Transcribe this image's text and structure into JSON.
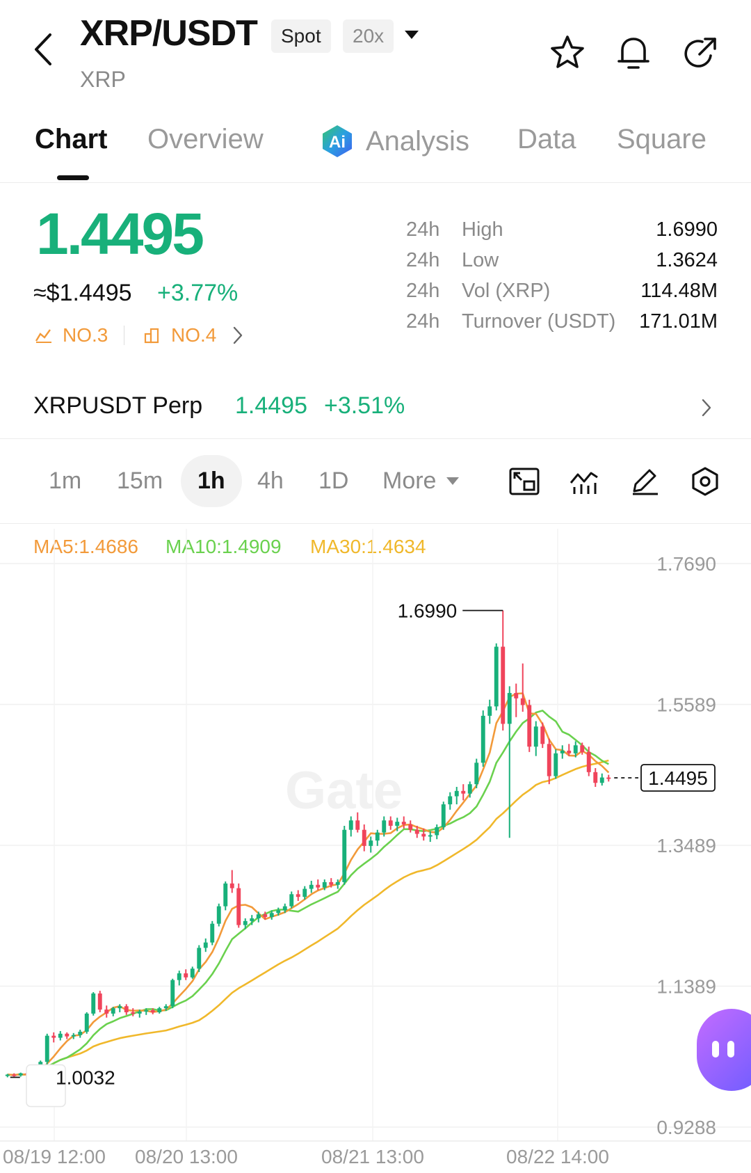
{
  "header": {
    "pair": "XRP/USDT",
    "base": "XRP",
    "market_tag": "Spot",
    "leverage_tag": "20x"
  },
  "tabs": [
    {
      "label": "Chart",
      "active": true
    },
    {
      "label": "Overview"
    },
    {
      "label": "Analysis"
    },
    {
      "label": "Data"
    },
    {
      "label": "Square"
    }
  ],
  "price": {
    "last": "1.4495",
    "usd": "≈$1.4495",
    "change": "+3.77%",
    "rank1": "NO.3",
    "rank2": "NO.4"
  },
  "stats": [
    {
      "period": "24h",
      "label": "High",
      "value": "1.6990"
    },
    {
      "period": "24h",
      "label": "Low",
      "value": "1.3624"
    },
    {
      "period": "24h",
      "label": "Vol (XRP)",
      "value": "114.48M"
    },
    {
      "period": "24h",
      "label": "Turnover (USDT)",
      "value": "171.01M"
    }
  ],
  "perp": {
    "name": "XRPUSDT Perp",
    "price": "1.4495",
    "change": "+3.51%"
  },
  "timeframes": [
    "1m",
    "15m",
    "1h",
    "4h",
    "1D",
    "More"
  ],
  "active_timeframe": "1h",
  "ma": {
    "ma5": "MA5:1.4686",
    "ma10": "MA10:1.4909",
    "ma30": "MA30:1.4634"
  },
  "colors": {
    "up": "#18b07a",
    "down": "#f0445b",
    "ma5": "#f29a3a",
    "ma10": "#6ad14e",
    "ma30": "#f0b82b",
    "accent_orange": "#f29a3a"
  },
  "chart_data": {
    "type": "candlestick",
    "y_ticks": [
      "1.7690",
      "1.5589",
      "1.3489",
      "1.1389",
      "0.9288"
    ],
    "x_ticks": [
      "08/19 12:00",
      "08/20 13:00",
      "08/21 13:00",
      "08/22 14:00"
    ],
    "high_label": "1.6990",
    "low_label": "1.0032",
    "last_label": "1.4495",
    "ylim": [
      0.9288,
      1.769
    ],
    "watermark": "Gate",
    "candles": [
      [
        1.006,
        1.008,
        1.003,
        1.007
      ],
      [
        1.007,
        1.009,
        1.004,
        1.006
      ],
      [
        1.006,
        1.01,
        1.004,
        1.009
      ],
      [
        1.009,
        1.011,
        1.005,
        1.007
      ],
      [
        1.007,
        1.012,
        1.003,
        1.01
      ],
      [
        1.01,
        1.028,
        1.008,
        1.026
      ],
      [
        1.026,
        1.068,
        1.022,
        1.065
      ],
      [
        1.065,
        1.07,
        1.055,
        1.062
      ],
      [
        1.062,
        1.072,
        1.058,
        1.068
      ],
      [
        1.068,
        1.07,
        1.06,
        1.064
      ],
      [
        1.064,
        1.069,
        1.06,
        1.066
      ],
      [
        1.066,
        1.074,
        1.062,
        1.071
      ],
      [
        1.071,
        1.1,
        1.068,
        1.098
      ],
      [
        1.098,
        1.13,
        1.095,
        1.128
      ],
      [
        1.128,
        1.132,
        1.1,
        1.104
      ],
      [
        1.104,
        1.11,
        1.092,
        1.098
      ],
      [
        1.098,
        1.108,
        1.094,
        1.106
      ],
      [
        1.106,
        1.112,
        1.1,
        1.109
      ],
      [
        1.109,
        1.112,
        1.096,
        1.1
      ],
      [
        1.1,
        1.106,
        1.094,
        1.098
      ],
      [
        1.098,
        1.104,
        1.092,
        1.101
      ],
      [
        1.101,
        1.106,
        1.096,
        1.103
      ],
      [
        1.103,
        1.106,
        1.097,
        1.1
      ],
      [
        1.1,
        1.108,
        1.098,
        1.106
      ],
      [
        1.106,
        1.112,
        1.102,
        1.109
      ],
      [
        1.109,
        1.15,
        1.106,
        1.148
      ],
      [
        1.148,
        1.162,
        1.14,
        1.158
      ],
      [
        1.158,
        1.164,
        1.148,
        1.152
      ],
      [
        1.152,
        1.168,
        1.15,
        1.165
      ],
      [
        1.165,
        1.2,
        1.16,
        1.196
      ],
      [
        1.196,
        1.21,
        1.19,
        1.204
      ],
      [
        1.204,
        1.236,
        1.2,
        1.232
      ],
      [
        1.232,
        1.262,
        1.228,
        1.258
      ],
      [
        1.258,
        1.295,
        1.252,
        1.292
      ],
      [
        1.292,
        1.312,
        1.278,
        1.285
      ],
      [
        1.285,
        1.292,
        1.226,
        1.23
      ],
      [
        1.23,
        1.24,
        1.224,
        1.236
      ],
      [
        1.236,
        1.245,
        1.23,
        1.24
      ],
      [
        1.24,
        1.25,
        1.234,
        1.246
      ],
      [
        1.246,
        1.25,
        1.238,
        1.242
      ],
      [
        1.242,
        1.252,
        1.238,
        1.248
      ],
      [
        1.248,
        1.256,
        1.244,
        1.252
      ],
      [
        1.252,
        1.262,
        1.248,
        1.258
      ],
      [
        1.258,
        1.28,
        1.255,
        1.276
      ],
      [
        1.276,
        1.282,
        1.266,
        1.272
      ],
      [
        1.272,
        1.288,
        1.268,
        1.284
      ],
      [
        1.284,
        1.296,
        1.278,
        1.29
      ],
      [
        1.29,
        1.298,
        1.282,
        1.286
      ],
      [
        1.286,
        1.298,
        1.282,
        1.294
      ],
      [
        1.294,
        1.3,
        1.286,
        1.29
      ],
      [
        1.29,
        1.298,
        1.284,
        1.294
      ],
      [
        1.294,
        1.378,
        1.29,
        1.372
      ],
      [
        1.372,
        1.392,
        1.362,
        1.386
      ],
      [
        1.386,
        1.398,
        1.368,
        1.372
      ],
      [
        1.372,
        1.38,
        1.34,
        1.348
      ],
      [
        1.348,
        1.362,
        1.338,
        1.356
      ],
      [
        1.356,
        1.372,
        1.348,
        1.368
      ],
      [
        1.368,
        1.392,
        1.362,
        1.386
      ],
      [
        1.386,
        1.392,
        1.372,
        1.378
      ],
      [
        1.378,
        1.39,
        1.37,
        1.384
      ],
      [
        1.384,
        1.392,
        1.374,
        1.38
      ],
      [
        1.38,
        1.386,
        1.368,
        1.372
      ],
      [
        1.372,
        1.378,
        1.36,
        1.366
      ],
      [
        1.366,
        1.374,
        1.356,
        1.362
      ],
      [
        1.362,
        1.37,
        1.354,
        1.364
      ],
      [
        1.364,
        1.38,
        1.358,
        1.376
      ],
      [
        1.376,
        1.414,
        1.372,
        1.41
      ],
      [
        1.41,
        1.428,
        1.402,
        1.422
      ],
      [
        1.422,
        1.436,
        1.41,
        1.43
      ],
      [
        1.43,
        1.44,
        1.416,
        1.426
      ],
      [
        1.426,
        1.444,
        1.42,
        1.44
      ],
      [
        1.44,
        1.478,
        1.434,
        1.472
      ],
      [
        1.472,
        1.55,
        1.466,
        1.542
      ],
      [
        1.542,
        1.566,
        1.53,
        1.556
      ],
      [
        1.556,
        1.65,
        1.55,
        1.645
      ],
      [
        1.645,
        1.699,
        1.52,
        1.53
      ],
      [
        1.53,
        1.586,
        1.36,
        1.576
      ],
      [
        1.576,
        1.59,
        1.54,
        1.568
      ],
      [
        1.568,
        1.62,
        1.548,
        1.558
      ],
      [
        1.558,
        1.566,
        1.488,
        1.496
      ],
      [
        1.496,
        1.534,
        1.482,
        1.526
      ],
      [
        1.526,
        1.532,
        1.494,
        1.5
      ],
      [
        1.5,
        1.508,
        1.44,
        1.452
      ],
      [
        1.452,
        1.492,
        1.448,
        1.486
      ],
      [
        1.486,
        1.498,
        1.478,
        1.49
      ],
      [
        1.49,
        1.5,
        1.482,
        1.486
      ],
      [
        1.486,
        1.504,
        1.48,
        1.498
      ],
      [
        1.498,
        1.502,
        1.484,
        1.488
      ],
      [
        1.488,
        1.496,
        1.452,
        1.458
      ],
      [
        1.458,
        1.464,
        1.436,
        1.442
      ],
      [
        1.442,
        1.456,
        1.438,
        1.45
      ],
      [
        1.45,
        1.454,
        1.444,
        1.449
      ]
    ]
  }
}
